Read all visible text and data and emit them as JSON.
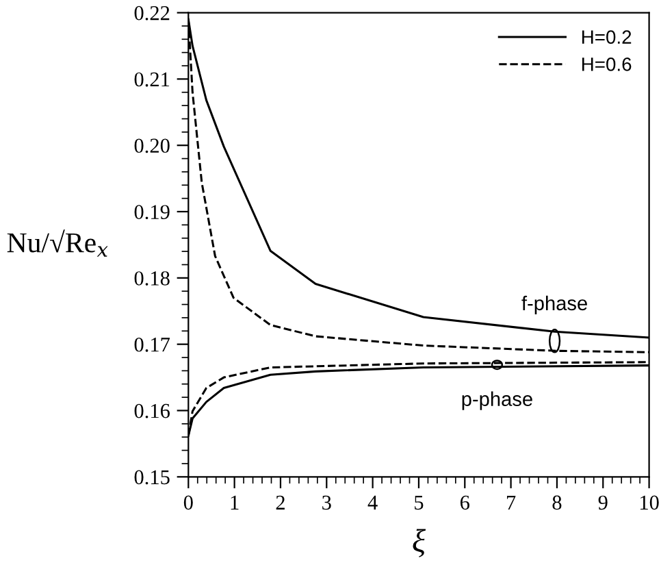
{
  "chart_data": {
    "type": "line",
    "xlabel": "ξ",
    "ylabel": "Nu/√Re$_{x}$",
    "xlim": [
      0,
      10
    ],
    "ylim": [
      0.15,
      0.22
    ],
    "xticks": [
      0,
      1,
      2,
      3,
      4,
      5,
      6,
      7,
      8,
      9,
      10
    ],
    "yticks": [
      0.15,
      0.16,
      0.17,
      0.18,
      0.19,
      {
        "value": 0.2,
        "label": "0.20"
      },
      0.21,
      0.22
    ],
    "grid": false,
    "legend": "top right",
    "marker": "none",
    "series": [
      {
        "name": "H=0.2",
        "color": "#000000",
        "line_style": "solid",
        "x": [
          0,
          0.09,
          0.39,
          0.77,
          1.78,
          2.76,
          5.1,
          7.95,
          10
        ],
        "values": [
          0.219,
          0.215,
          0.2068,
          0.1998,
          0.1841,
          0.1791,
          0.1741,
          0.1719,
          0.171
        ]
      },
      {
        "name": "H=0.6",
        "color": "#000000",
        "line_style": "dashed",
        "x": [
          0,
          0.09,
          0.29,
          0.58,
          0.98,
          1.78,
          2.76,
          5.1,
          8,
          10
        ],
        "values": [
          0.219,
          0.208,
          0.1944,
          0.1833,
          0.177,
          0.1729,
          0.1712,
          0.1698,
          0.169,
          0.1688
        ]
      },
      {
        "color": "#000000",
        "line_style": "dashed",
        "x": [
          0,
          0.09,
          0.39,
          0.77,
          1.78,
          5.1,
          10
        ],
        "values": [
          0.1562,
          0.1599,
          0.1634,
          0.165,
          0.1665,
          0.1671,
          0.1673
        ]
      },
      {
        "color": "#000000",
        "line_style": "solid",
        "x": [
          0,
          0.09,
          0.39,
          0.77,
          1.78,
          2.76,
          5.1,
          10
        ],
        "values": [
          0.1562,
          0.1588,
          0.1613,
          0.1634,
          0.1654,
          0.1659,
          0.1665,
          0.1668
        ]
      }
    ],
    "annotations": [
      {
        "text": "f-phase",
        "x": 7.95,
        "y": 0.1705
      },
      {
        "text": "p-phase",
        "x": 6.7,
        "y": 0.1669
      }
    ]
  }
}
